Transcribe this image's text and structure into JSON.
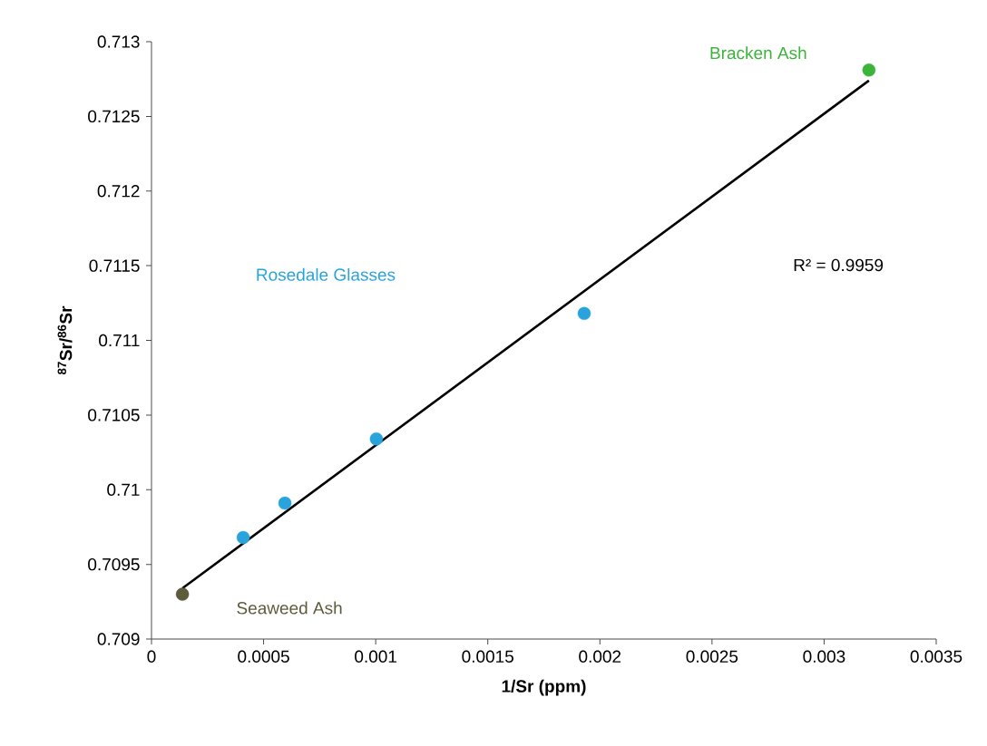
{
  "chart_data": {
    "type": "scatter",
    "xlabel": "1/Sr (ppm)",
    "ylabel": "$^{87}$Sr/$^{86}$Sr",
    "series": [
      {
        "name": "Seaweed Ash",
        "color": "#5c5c3c",
        "marker": "circle",
        "x": [
          0.000138
        ],
        "values": [
          0.7093
        ]
      },
      {
        "name": "Rosedale Glasses",
        "color": "#29a3dc",
        "marker": "circle",
        "x": [
          0.000409,
          0.000595,
          0.001003,
          0.00193
        ],
        "values": [
          0.70968,
          0.70991,
          0.71034,
          0.71118
        ]
      },
      {
        "name": "Bracken Ash",
        "color": "#3cb43c",
        "marker": "circle",
        "x": [
          0.0032
        ],
        "values": [
          0.71281
        ]
      },
      {
        "type": "line",
        "color": "#000000",
        "marker": "none",
        "x": [
          0.000138,
          0.0032
        ],
        "values": [
          0.70934,
          0.71274
        ]
      }
    ],
    "annotations": [
      "R² = 0.9959"
    ],
    "xlim": [
      0,
      0.0035
    ],
    "ylim": [
      0.709,
      0.713
    ],
    "xticks": [
      0,
      0.0005,
      0.001,
      0.0015,
      0.002,
      0.0025,
      0.003,
      0.0035
    ],
    "yticks": [
      0.709,
      0.7095,
      0.71,
      0.7105,
      0.711,
      0.7115,
      0.712,
      0.7125,
      0.713
    ],
    "grid": false
  }
}
